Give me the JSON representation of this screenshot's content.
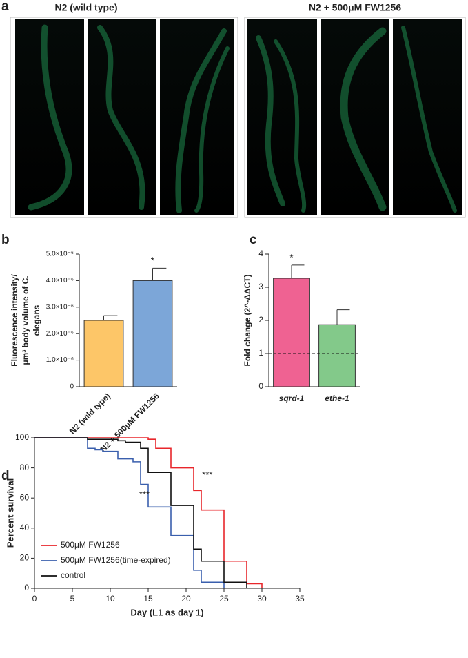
{
  "panel_a": {
    "letter": "a",
    "groups": [
      {
        "title": "N2 (wild type)"
      },
      {
        "title": "N2 + 500μM FW1256"
      }
    ]
  },
  "chart_data": [
    {
      "type": "bar",
      "letter": "b",
      "categories": [
        "N2 (wild type)",
        "N2 + 500μM FW1256"
      ],
      "values": [
        2.5e-06,
        4e-06
      ],
      "errors": [
        1.8e-07,
        4.7e-07
      ],
      "colors": [
        "#fdc668",
        "#7ca6d8"
      ],
      "ylabel": [
        "Fluorescence intensity/",
        "μm³ body volume of C.",
        "elegans"
      ],
      "ylim": [
        0,
        5e-06
      ],
      "yticks": [
        0,
        {
          "value": 1e-06,
          "label": "1.0×10⁻⁶"
        },
        {
          "value": 2e-06,
          "label": "2.0×10⁻⁶"
        },
        {
          "value": 3e-06,
          "label": "3.0×10⁻⁶"
        },
        {
          "value": 4e-06,
          "label": "4.0×10⁻⁶"
        },
        {
          "value": 5e-06,
          "label": "5.0×10⁻⁶"
        }
      ],
      "annotations": [
        {
          "text": "*",
          "category": 1
        }
      ]
    },
    {
      "type": "bar",
      "letter": "c",
      "categories": [
        "sqrd-1",
        "ethe-1"
      ],
      "values": [
        3.27,
        1.87
      ],
      "errors": [
        0.4,
        0.45
      ],
      "colors": [
        "#ef6292",
        "#83c98a"
      ],
      "ylabel": [
        "Fold change (2^-ΔΔCT)"
      ],
      "ylim": [
        0,
        4
      ],
      "yticks": [
        0,
        1,
        2,
        3,
        4
      ],
      "reference_line": 1,
      "annotations": [
        {
          "text": "*",
          "category": 0
        }
      ]
    },
    {
      "type": "line",
      "letter": "d",
      "xlabel": "Day (L1 as day 1)",
      "ylabel": "Percent survival",
      "xlim": [
        0,
        35
      ],
      "ylim": [
        0,
        100
      ],
      "xticks": [
        0,
        5,
        10,
        15,
        20,
        25,
        30,
        35
      ],
      "yticks": [
        0,
        20,
        40,
        60,
        80,
        100
      ],
      "legend": "lower left",
      "series": [
        {
          "name": "500μM FW1256",
          "color": "#e8262b",
          "x": [
            0,
            14,
            15,
            16,
            18,
            21,
            22,
            25,
            28,
            30
          ],
          "values": [
            100,
            100,
            99,
            93,
            80,
            65,
            52,
            18,
            3,
            0
          ]
        },
        {
          "name": "500μM FW1256(time-expired)",
          "color": "#3a5fad",
          "x": [
            0,
            7,
            8,
            9,
            11,
            13,
            14,
            15,
            18,
            21,
            22,
            25
          ],
          "values": [
            100,
            93,
            92,
            91,
            86,
            84,
            69,
            54,
            35,
            12,
            4,
            0
          ]
        },
        {
          "name": "control",
          "color": "#111111",
          "x": [
            0,
            7,
            11,
            12,
            14,
            15,
            18,
            21,
            22,
            25,
            28
          ],
          "values": [
            100,
            99,
            98,
            97,
            93,
            77,
            55,
            26,
            18,
            4,
            0
          ]
        }
      ],
      "annotations": [
        {
          "text": "***",
          "x": 22.8,
          "y": 75
        },
        {
          "text": "***",
          "x": 14.5,
          "y": 62
        }
      ]
    }
  ]
}
